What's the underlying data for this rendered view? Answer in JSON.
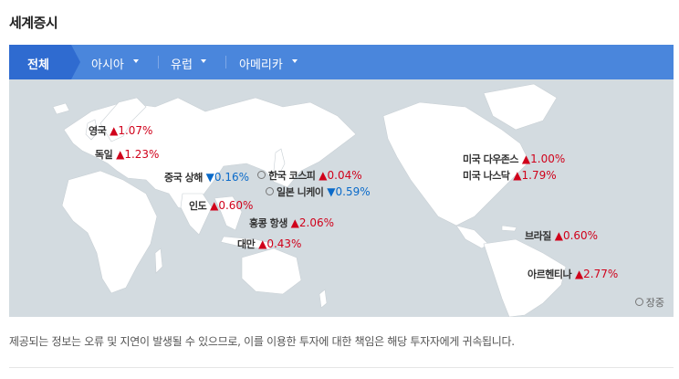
{
  "page": {
    "title": "세계증시"
  },
  "tabs": [
    {
      "label": "전체"
    },
    {
      "label": "아시아"
    },
    {
      "label": "유럽"
    },
    {
      "label": "아메리카"
    }
  ],
  "markets": {
    "uk": {
      "name": "영국",
      "direction": "▲",
      "change": "1.07%"
    },
    "germany": {
      "name": "독일",
      "direction": "▲",
      "change": "1.23%"
    },
    "china": {
      "name": "중국 상해",
      "direction": "▼",
      "change": "0.16%"
    },
    "korea": {
      "name": "한국 코스피",
      "direction": "▲",
      "change": "0.04%"
    },
    "japan": {
      "name": "일본 니케이",
      "direction": "▼",
      "change": "0.59%"
    },
    "india": {
      "name": "인도",
      "direction": "▲",
      "change": "0.60%"
    },
    "hongkong": {
      "name": "홍콩 항생",
      "direction": "▲",
      "change": "2.06%"
    },
    "taiwan": {
      "name": "대만",
      "direction": "▲",
      "change": "0.43%"
    },
    "dow": {
      "name": "미국 다우존스",
      "direction": "▲",
      "change": "1.00%"
    },
    "nasdaq": {
      "name": "미국 나스닥",
      "direction": "▲",
      "change": "1.79%"
    },
    "brazil": {
      "name": "브라질",
      "direction": "▲",
      "change": "0.60%"
    },
    "argentina": {
      "name": "아르헨티나",
      "direction": "▲",
      "change": "2.77%"
    }
  },
  "legend": {
    "market_open": "장중"
  },
  "notice": "제공되는 정보는 오류 및 지연이 발생될 수 있으므로, 이를 이용한 투자에 대한 책임은 해당 투자자에게 귀속됩니다.",
  "colors": {
    "up": "#d0021b",
    "down": "#0a6ac9",
    "tab_bar": "#4a86dc",
    "tab_active": "#2f6bd0",
    "map_bg": "#d3dbe0"
  }
}
